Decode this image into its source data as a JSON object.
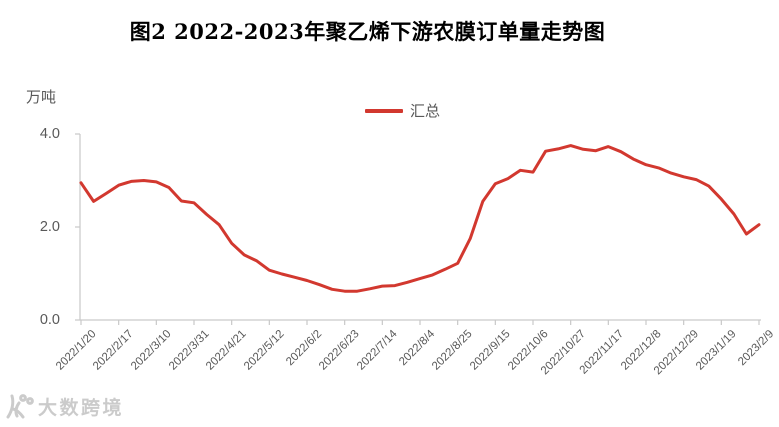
{
  "header": {
    "title": "图2 2022-2023年聚乙烯下游农膜订单量走势图"
  },
  "chart_data": {
    "type": "line",
    "title": "图2 2022-2023年聚乙烯下游农膜订单量走势图",
    "unit_label": "万吨",
    "grid": false,
    "legend_position": "top-center",
    "ylim": [
      0,
      4.0
    ],
    "y_tick_labels": [
      "0.0",
      "2.0",
      "4.0"
    ],
    "y_tick_values": [
      0.0,
      2.0,
      4.0
    ],
    "x_label_every_n_points": 3,
    "categories": [
      "2022/1/20",
      "2022/2/17",
      "2022/3/10",
      "2022/3/31",
      "2022/4/21",
      "2022/5/12",
      "2022/6/2",
      "2022/6/23",
      "2022/7/14",
      "2022/8/4",
      "2022/8/25",
      "2022/9/15",
      "2022/10/6",
      "2022/10/27",
      "2022/11/17",
      "2022/12/8",
      "2022/12/29",
      "2023/1/19",
      "2023/2/9"
    ],
    "series": [
      {
        "name": "汇总",
        "color": "#d2382f",
        "values": [
          2.95,
          2.55,
          2.72,
          2.9,
          2.98,
          3.0,
          2.97,
          2.85,
          2.56,
          2.52,
          2.27,
          2.05,
          1.65,
          1.4,
          1.27,
          1.07,
          0.99,
          0.92,
          0.85,
          0.76,
          0.66,
          0.62,
          0.62,
          0.67,
          0.73,
          0.74,
          0.81,
          0.89,
          0.97,
          1.09,
          1.22,
          1.75,
          2.55,
          2.93,
          3.04,
          3.22,
          3.18,
          3.63,
          3.68,
          3.75,
          3.67,
          3.64,
          3.73,
          3.62,
          3.46,
          3.34,
          3.27,
          3.16,
          3.08,
          3.02,
          2.88,
          2.6,
          2.28,
          1.85,
          2.05
        ]
      }
    ]
  },
  "watermark": {
    "text": "大数跨境"
  },
  "colors": {
    "axis": "#c9c9c9",
    "tick_text": "#595959",
    "line": "#d2382f",
    "watermark": "#c9c9c9"
  }
}
